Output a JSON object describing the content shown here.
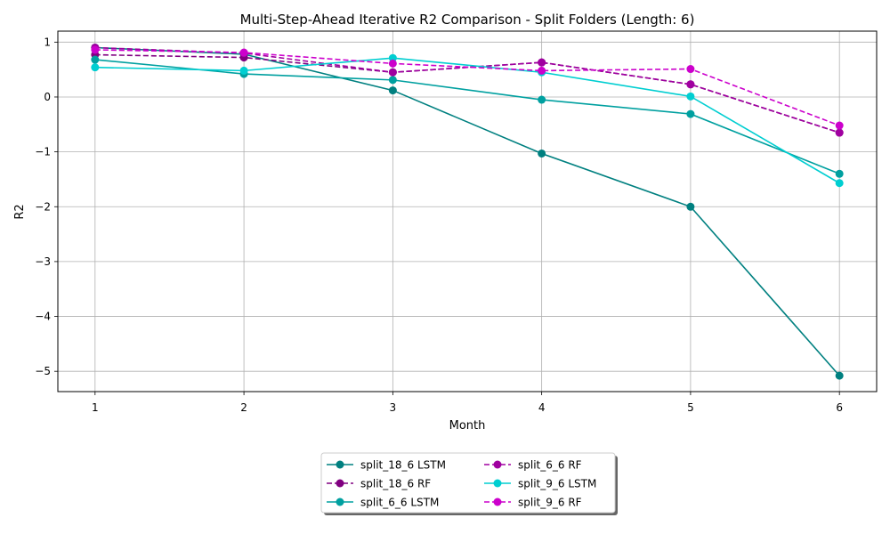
{
  "chart_data": {
    "type": "line",
    "title": "Multi-Step-Ahead Iterative R2 Comparison - Split Folders (Length: 6)",
    "xlabel": "Month",
    "ylabel": "R2",
    "x": [
      1,
      2,
      3,
      4,
      5,
      6
    ],
    "xticks": [
      "1",
      "2",
      "3",
      "4",
      "5",
      "6"
    ],
    "xlim": [
      0.75,
      6.25
    ],
    "ylim": [
      -5.37,
      1.2
    ],
    "yticks": [
      {
        "value": 1,
        "label": "1"
      },
      {
        "value": 0,
        "label": "0"
      },
      {
        "value": -1,
        "label": "−1"
      },
      {
        "value": -2,
        "label": "−2"
      },
      {
        "value": -3,
        "label": "−3"
      },
      {
        "value": -4,
        "label": "−4"
      },
      {
        "value": -5,
        "label": "−5"
      }
    ],
    "grid": true,
    "legend_position": "bottom-center",
    "series": [
      {
        "name": "split_18_6 LSTM",
        "color": "#008080",
        "dashed": false,
        "values": [
          0.9,
          0.78,
          0.12,
          -1.03,
          -2.0,
          -5.08
        ]
      },
      {
        "name": "split_18_6 RF",
        "color": "#800080",
        "dashed": true,
        "values": [
          0.77,
          0.72,
          0.45,
          0.63,
          0.23,
          -0.65
        ]
      },
      {
        "name": "split_6_6 LSTM",
        "color": "#00A0A0",
        "dashed": false,
        "values": [
          0.68,
          0.42,
          0.31,
          -0.05,
          -0.31,
          -1.4
        ]
      },
      {
        "name": "split_6_6 RF",
        "color": "#A000A0",
        "dashed": true,
        "values": [
          0.9,
          0.8,
          0.45,
          0.63,
          0.23,
          -0.65
        ]
      },
      {
        "name": "split_9_6 LSTM",
        "color": "#00CED1",
        "dashed": false,
        "values": [
          0.54,
          0.48,
          0.71,
          0.45,
          0.01,
          -1.57
        ]
      },
      {
        "name": "split_9_6 RF",
        "color": "#CC00CC",
        "dashed": true,
        "values": [
          0.86,
          0.81,
          0.61,
          0.48,
          0.51,
          -0.52
        ]
      }
    ]
  }
}
